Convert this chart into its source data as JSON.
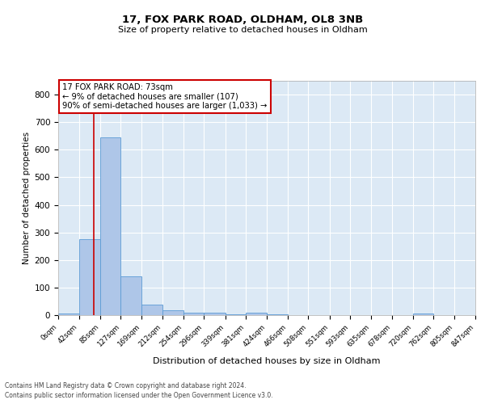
{
  "title1": "17, FOX PARK ROAD, OLDHAM, OL8 3NB",
  "title2": "Size of property relative to detached houses in Oldham",
  "xlabel": "Distribution of detached houses by size in Oldham",
  "ylabel": "Number of detached properties",
  "footer1": "Contains HM Land Registry data © Crown copyright and database right 2024.",
  "footer2": "Contains public sector information licensed under the Open Government Licence v3.0.",
  "annotation_line1": "17 FOX PARK ROAD: 73sqm",
  "annotation_line2": "← 9% of detached houses are smaller (107)",
  "annotation_line3": "90% of semi-detached houses are larger (1,033) →",
  "subject_size": 73,
  "bin_edges": [
    0,
    42,
    85,
    127,
    169,
    212,
    254,
    296,
    339,
    381,
    424,
    466,
    508,
    551,
    593,
    635,
    678,
    720,
    762,
    805,
    847
  ],
  "bar_heights": [
    7,
    275,
    645,
    140,
    38,
    18,
    10,
    8,
    3,
    10,
    3,
    0,
    0,
    0,
    0,
    0,
    0,
    5,
    0,
    0
  ],
  "bar_color": "#aec6e8",
  "bar_edge_color": "#5b9bd5",
  "subject_line_color": "#cc0000",
  "annotation_box_edge_color": "#cc0000",
  "background_color": "#dce9f5",
  "ylim": [
    0,
    850
  ],
  "yticks": [
    0,
    100,
    200,
    300,
    400,
    500,
    600,
    700,
    800
  ]
}
